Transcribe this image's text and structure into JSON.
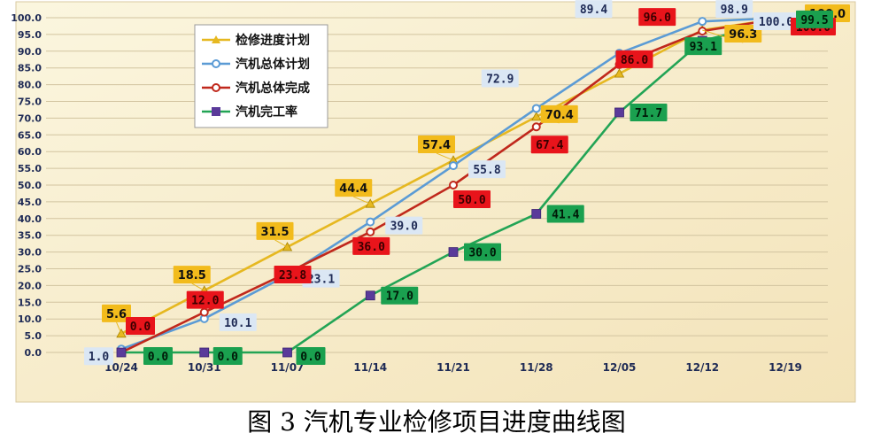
{
  "caption": "图 3 汽机专业检修项目进度曲线图",
  "chart_data": {
    "type": "line",
    "categories": [
      "10/24",
      "10/31",
      "11/07",
      "11/14",
      "11/21",
      "11/28",
      "12/05",
      "12/12",
      "12/19"
    ],
    "ylim": [
      0,
      100
    ],
    "yticks": [
      "0.0",
      "5.0",
      "10.0",
      "15.0",
      "20.0",
      "25.0",
      "30.0",
      "35.0",
      "40.0",
      "45.0",
      "50.0",
      "55.0",
      "60.0",
      "65.0",
      "70.0",
      "75.0",
      "80.0",
      "85.0",
      "90.0",
      "95.0",
      "100.0"
    ],
    "grid": true,
    "legend_position": "top-left",
    "series": [
      {
        "name": "检修进度计划",
        "color": "#e6b820",
        "marker": "triangle",
        "values": [
          5.6,
          18.5,
          31.5,
          44.4,
          57.4,
          70.4,
          83.3,
          96.3,
          100.0
        ],
        "labels": [
          "5.6",
          "18.5",
          "31.5",
          "44.4",
          "57.4",
          "70.4",
          "",
          "96.3",
          "100.0"
        ],
        "label_bg": "#f2bb1c",
        "label_fg": "#111111"
      },
      {
        "name": "汽机总体计划",
        "color": "#5b9bd5",
        "marker": "circle",
        "values": [
          1.0,
          10.1,
          23.1,
          39.0,
          55.8,
          72.9,
          89.4,
          98.9,
          100.0
        ],
        "labels": [
          "1.0",
          "10.1",
          "23.1",
          "39.0",
          "55.8",
          "72.9",
          "89.4",
          "98.9",
          "100.0"
        ],
        "label_bg": "#dbe7f4",
        "label_fg": "#1e2a55"
      },
      {
        "name": "汽机总体完成",
        "color": "#c0281c",
        "marker": "circle",
        "values": [
          0.0,
          12.0,
          23.8,
          36.0,
          50.0,
          67.4,
          86.0,
          96.0,
          100.0
        ],
        "labels": [
          "0.0",
          "12.0",
          "23.8",
          "36.0",
          "50.0",
          "67.4",
          "86.0",
          "96.0",
          "100.0"
        ],
        "label_bg": "#e8141b",
        "label_fg": "#3a0000"
      },
      {
        "name": "汽机完工率",
        "color": "#22a455",
        "marker": "square",
        "values": [
          0.0,
          0.0,
          0.0,
          17.0,
          30.0,
          41.4,
          71.7,
          93.1,
          99.5
        ],
        "labels": [
          "0.0",
          "0.0",
          "0.0",
          "17.0",
          "30.0",
          "41.4",
          "71.7",
          "93.1",
          "99.5"
        ],
        "label_bg": "#1aa04f",
        "label_fg": "#001a08"
      }
    ]
  }
}
